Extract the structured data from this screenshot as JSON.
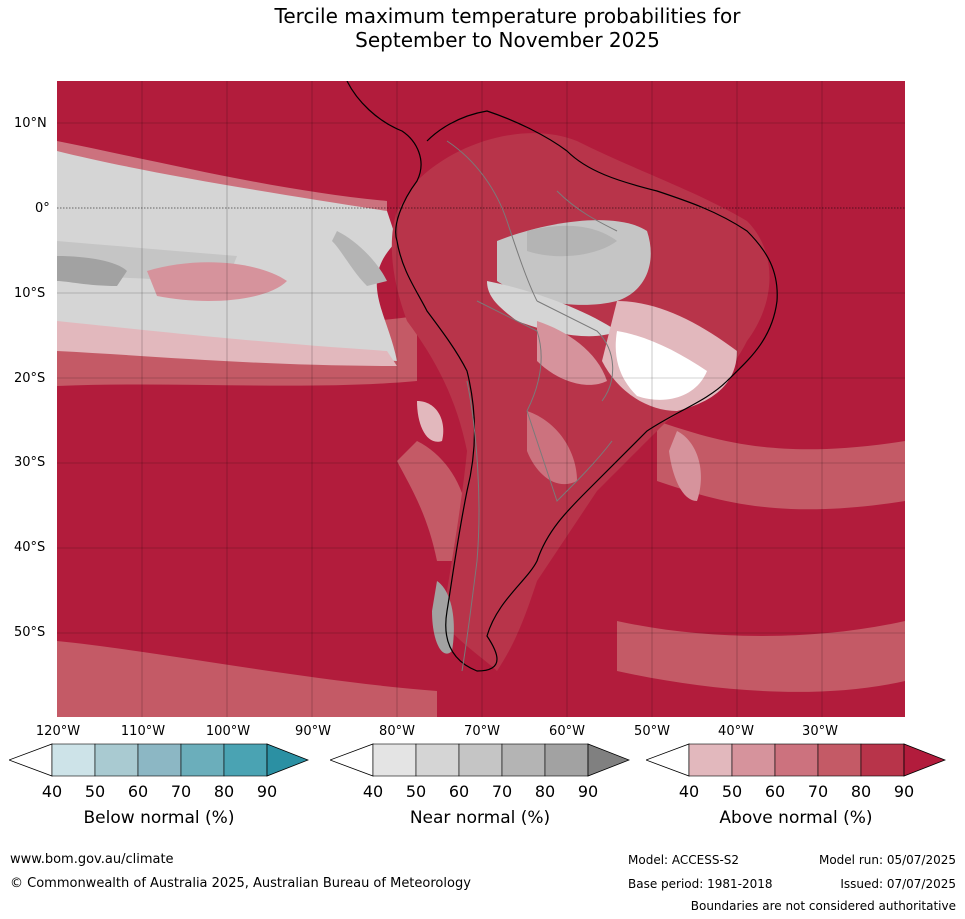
{
  "title_line1": "Tercile maximum temperature probabilities for",
  "title_line2": "September to November 2025",
  "lat_labels": [
    "10°N",
    "0°",
    "10°S",
    "20°S",
    "30°S",
    "40°S",
    "50°S"
  ],
  "lon_labels": [
    "120°W",
    "110°W",
    "100°W",
    "90°W",
    "80°W",
    "70°W",
    "60°W",
    "50°W",
    "40°W",
    "30°W"
  ],
  "legends": [
    {
      "title": "Below normal (%)",
      "ticks": [
        "40",
        "50",
        "60",
        "70",
        "80",
        "90"
      ],
      "colors": [
        "#ffffff",
        "#cde3e8",
        "#a9cad1",
        "#8cb7c4",
        "#6baebb",
        "#4aa3b3",
        "#2b90a3"
      ]
    },
    {
      "title": "Near normal (%)",
      "ticks": [
        "40",
        "50",
        "60",
        "70",
        "80",
        "90"
      ],
      "colors": [
        "#ffffff",
        "#e4e4e4",
        "#d5d5d5",
        "#c5c5c5",
        "#b4b4b4",
        "#a2a2a2",
        "#808080"
      ]
    },
    {
      "title": "Above normal (%)",
      "ticks": [
        "40",
        "50",
        "60",
        "70",
        "80",
        "90"
      ],
      "colors": [
        "#ffffff",
        "#e2b8bd",
        "#d6939c",
        "#cc727e",
        "#c45a66",
        "#b8344a",
        "#b21c3c"
      ]
    }
  ],
  "footer": {
    "website": "www.bom.gov.au/climate",
    "copyright": "© Commonwealth of Australia 2025, Australian Bureau of Meteorology",
    "model": "Model: ACCESS-S2",
    "base_period": "Base period: 1981-2018",
    "model_run": "Model run: 05/07/2025",
    "issued": "Issued: 07/07/2025",
    "disclaimer": "Boundaries are not considered authoritative"
  }
}
